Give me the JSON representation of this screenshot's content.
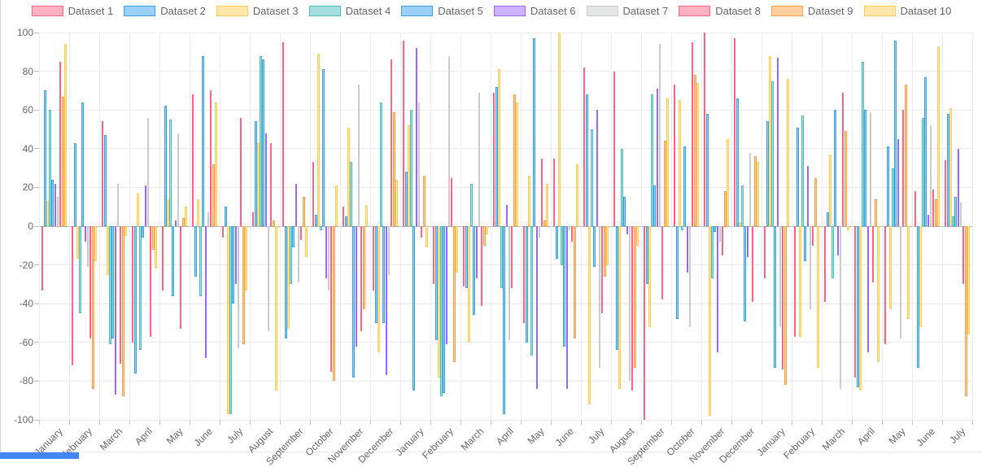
{
  "chart_data": {
    "type": "bar",
    "title": "",
    "xlabel": "",
    "ylabel": "",
    "ylim": [
      -100,
      100
    ],
    "ytick_step": 20,
    "yticks": [
      100,
      80,
      60,
      40,
      20,
      0,
      -20,
      -40,
      -60,
      -80,
      -100
    ],
    "grid": true,
    "legend_position": "top",
    "categories": [
      "January",
      "February",
      "March",
      "April",
      "May",
      "June",
      "July",
      "August",
      "September",
      "October",
      "November",
      "December",
      "January",
      "February",
      "March",
      "April",
      "May",
      "June",
      "July",
      "August",
      "September",
      "October",
      "November",
      "December",
      "January",
      "February",
      "March",
      "April",
      "May",
      "June",
      "July"
    ],
    "series": [
      {
        "name": "Dataset 1",
        "color": "#FF6384",
        "values": [
          -33,
          -72,
          54,
          -60,
          -33,
          68,
          -6,
          7,
          95,
          33,
          10,
          -33,
          96,
          -30,
          -31,
          69,
          -50,
          35,
          82,
          80,
          -100,
          73,
          100,
          97,
          -27,
          -57,
          -39,
          -78,
          -61,
          18,
          34
        ]
      },
      {
        "name": "Dataset 2",
        "color": "#36A2EB",
        "values": [
          70,
          43,
          47,
          -76,
          62,
          -26,
          10,
          54,
          -58,
          6,
          5,
          -50,
          28,
          -59,
          -32,
          72,
          -60,
          -17,
          68,
          -64,
          -30,
          -48,
          58,
          66,
          54,
          51,
          7,
          -83,
          41,
          -73,
          58
        ]
      },
      {
        "name": "Dataset 3",
        "color": "#FFCD56",
        "values": [
          13,
          -17,
          -25,
          17,
          14,
          14,
          -97,
          43,
          -53,
          89,
          51,
          -65,
          52,
          -78,
          -60,
          81,
          26,
          100,
          -92,
          -84,
          -52,
          65,
          -98,
          2,
          88,
          -57,
          37,
          -85,
          -43,
          -52,
          61
        ]
      },
      {
        "name": "Dataset 4",
        "color": "#4BC0C0",
        "values": [
          60,
          -45,
          -61,
          -64,
          55,
          -36,
          -97,
          88,
          -30,
          -2,
          33,
          64,
          60,
          -88,
          22,
          -32,
          -67,
          -20,
          50,
          40,
          68,
          -2,
          -27,
          21,
          75,
          57,
          -27,
          85,
          30,
          56,
          5
        ]
      },
      {
        "name": "Dataset 5",
        "color": "#36A2EB",
        "values": [
          24,
          64,
          -58,
          -6,
          -36,
          88,
          -40,
          86,
          -11,
          81,
          -78,
          -50,
          -85,
          -86,
          -46,
          -97,
          97,
          -62,
          -21,
          15,
          21,
          41,
          -3,
          -49,
          -73,
          -18,
          60,
          60,
          96,
          77,
          15
        ]
      },
      {
        "name": "Dataset 6",
        "color": "#9966FF",
        "values": [
          22,
          -8,
          -87,
          21,
          3,
          -68,
          -30,
          48,
          22,
          -27,
          -62,
          -77,
          92,
          -61,
          -27,
          11,
          -84,
          -84,
          60,
          -4,
          71,
          -24,
          -65,
          -16,
          87,
          31,
          -15,
          -65,
          45,
          6,
          40
        ]
      },
      {
        "name": "Dataset 7",
        "color": "#C9CBCF",
        "values": [
          15,
          -21,
          22,
          56,
          48,
          7,
          -63,
          -54,
          -29,
          -33,
          73,
          -25,
          64,
          88,
          69,
          -59,
          -6,
          -2,
          -73,
          -80,
          94,
          -52,
          -8,
          38,
          -52,
          -43,
          -84,
          59,
          -58,
          52,
          12
        ]
      },
      {
        "name": "Dataset 8",
        "color": "#FF6384",
        "values": [
          85,
          -58,
          -71,
          -57,
          -53,
          70,
          56,
          43,
          -7,
          -75,
          -54,
          86,
          -6,
          25,
          -41,
          -32,
          35,
          -8,
          -45,
          -85,
          -38,
          95,
          -15,
          -39,
          -74,
          -10,
          69,
          -29,
          60,
          19,
          -30
        ]
      },
      {
        "name": "Dataset 9",
        "color": "#FF9F40",
        "values": [
          67,
          -84,
          -88,
          -12,
          4,
          32,
          -61,
          3,
          15,
          -80,
          -43,
          59,
          26,
          -70,
          -10,
          68,
          3,
          -58,
          -26,
          -73,
          44,
          78,
          18,
          36,
          -82,
          25,
          49,
          14,
          73,
          14,
          -88
        ]
      },
      {
        "name": "Dataset 10",
        "color": "#FFCD56",
        "values": [
          94,
          -18,
          -5,
          -22,
          10,
          64,
          -33,
          -85,
          -16,
          21,
          11,
          24,
          -11,
          -24,
          -4,
          64,
          22,
          32,
          -20,
          -10,
          66,
          74,
          45,
          33,
          76,
          -73,
          -2,
          -70,
          -48,
          93,
          -56
        ]
      }
    ]
  },
  "legend": {
    "items": [
      {
        "label": "Dataset 1",
        "color": "#FF6384"
      },
      {
        "label": "Dataset 2",
        "color": "#36A2EB"
      },
      {
        "label": "Dataset 3",
        "color": "#FFCD56"
      },
      {
        "label": "Dataset 4",
        "color": "#4BC0C0"
      },
      {
        "label": "Dataset 5",
        "color": "#36A2EB"
      },
      {
        "label": "Dataset 6",
        "color": "#9966FF"
      },
      {
        "label": "Dataset 7",
        "color": "#C9CBCF"
      },
      {
        "label": "Dataset 8",
        "color": "#FF6384"
      },
      {
        "label": "Dataset 9",
        "color": "#FF9F40"
      },
      {
        "label": "Dataset 10",
        "color": "#FFCD56"
      }
    ]
  }
}
